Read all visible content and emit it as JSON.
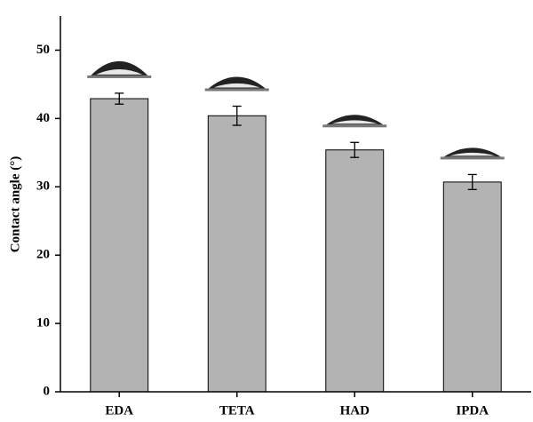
{
  "chart_data": {
    "type": "bar",
    "y_label": "Contact angle (°)",
    "categories": [
      "EDA",
      "TETA",
      "HAD",
      "IPDA"
    ],
    "values": [
      42.9,
      40.4,
      35.4,
      30.7
    ],
    "errors": [
      0.8,
      1.4,
      1.1,
      1.1
    ],
    "color": "#b3b3b3",
    "ylim": [
      0,
      55
    ],
    "yticks": [
      0,
      10,
      20,
      30,
      40,
      50
    ],
    "grid": false
  }
}
